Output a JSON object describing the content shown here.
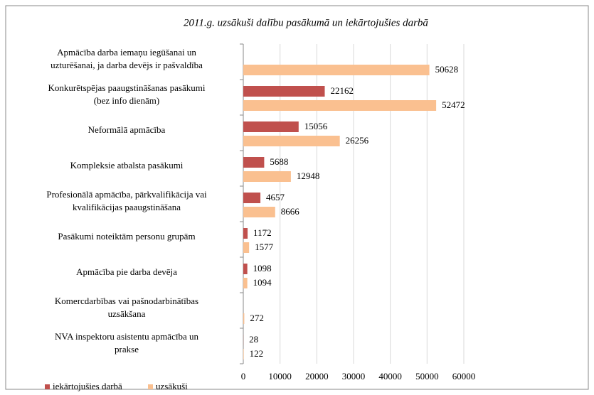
{
  "chart_data": {
    "type": "hbar",
    "title": "2011.g. uzsākuši dalību pasākumā un iekārtojušies darbā",
    "categories": [
      [
        "Apmācība darba iemaņu iegūšanai un",
        "uzturēšanai, ja darba devējs ir pašvaldība"
      ],
      [
        "Konkurētspējas paaugstināšanas pasākumi",
        "(bez info dienām)"
      ],
      [
        "Neformālā apmācība"
      ],
      [
        "Kompleksie atbalsta pasākumi"
      ],
      [
        "Profesionālā apmācība, pārkvalifikācija vai",
        "kvalifikācijas paaugstināšana"
      ],
      [
        "Pasākumi noteiktām personu grupām"
      ],
      [
        "Apmācība pie darba devēja"
      ],
      [
        "Komercdarbības vai pašnodarbinātības",
        "uzsākšana"
      ],
      [
        "NVA inspektoru asistentu apmācība un",
        "prakse"
      ]
    ],
    "series": [
      {
        "name": "iekārtojušies darbā",
        "color": "#c0504d",
        "values": [
          null,
          22162,
          15056,
          5688,
          4657,
          1172,
          1098,
          null,
          28
        ]
      },
      {
        "name": "uzsākuši",
        "color": "#fac090",
        "values": [
          50628,
          52472,
          26256,
          12948,
          8666,
          1577,
          1094,
          272,
          122
        ]
      }
    ],
    "xlim": [
      0,
      60000
    ],
    "xticks": [
      0,
      10000,
      20000,
      30000,
      40000,
      50000,
      60000
    ],
    "grid": true
  }
}
